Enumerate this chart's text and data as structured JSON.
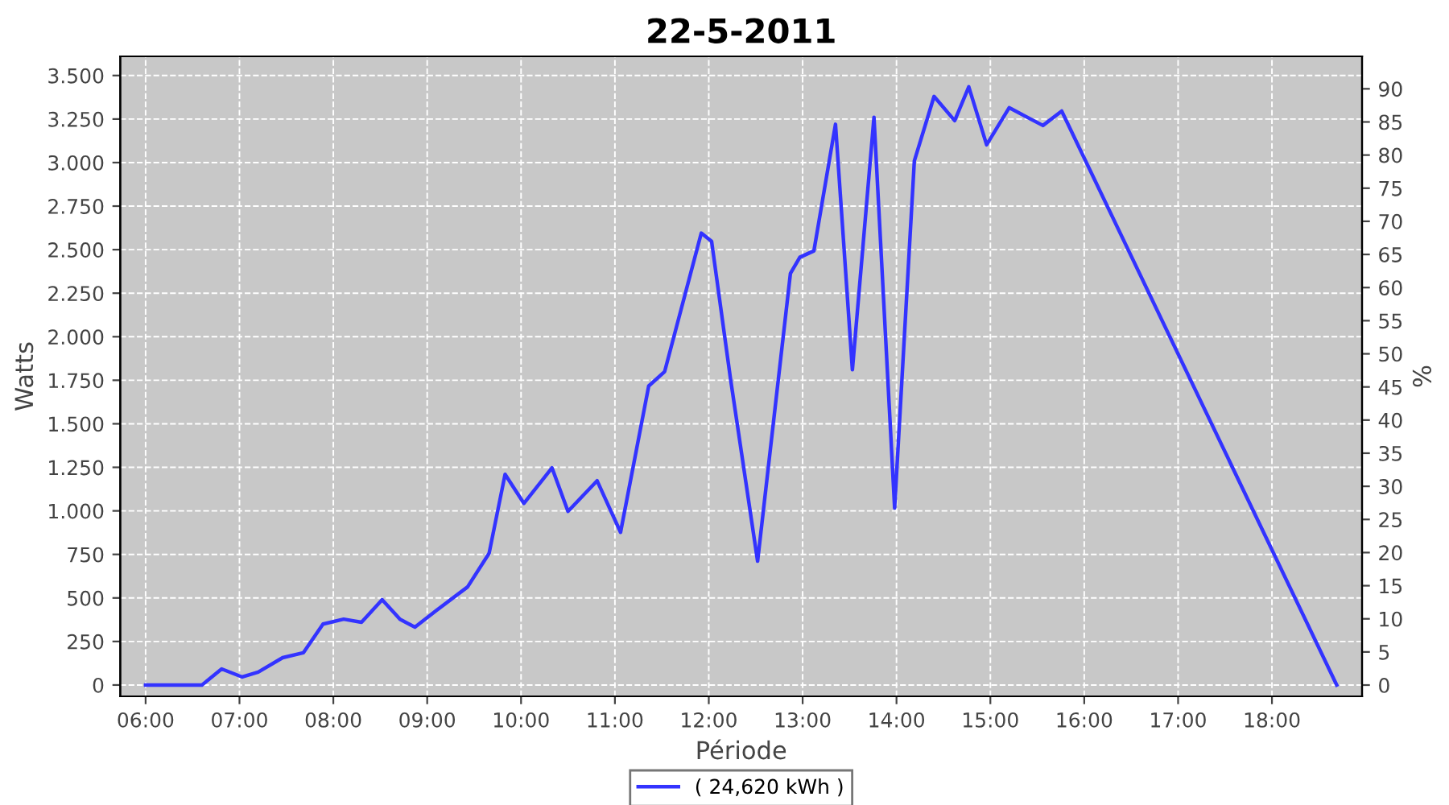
{
  "chart_data": {
    "type": "line",
    "title": "22-5-2011",
    "xlabel": "Période",
    "ylabel": "Watts",
    "y2label": "%",
    "x": [
      6.0,
      6.6,
      6.81,
      7.03,
      7.2,
      7.46,
      7.68,
      7.89,
      8.11,
      8.3,
      8.52,
      8.71,
      8.87,
      9.09,
      9.43,
      9.66,
      9.83,
      10.03,
      10.33,
      10.5,
      10.81,
      11.06,
      11.36,
      11.53,
      11.92,
      12.03,
      12.23,
      12.52,
      12.87,
      12.97,
      13.12,
      13.35,
      13.53,
      13.76,
      13.98,
      14.19,
      14.4,
      14.62,
      14.77,
      14.96,
      15.2,
      15.56,
      15.76,
      18.69
    ],
    "series": [
      {
        "name": "( 24,620 kWh )",
        "color": "#3333ff",
        "values": [
          0,
          0,
          92,
          46,
          74,
          157,
          185,
          350,
          378,
          360,
          490,
          378,
          332,
          425,
          563,
          757,
          1210,
          1043,
          1247,
          997,
          1173,
          877,
          1717,
          1800,
          2595,
          2548,
          1764,
          711,
          2364,
          2456,
          2493,
          3220,
          1810,
          3260,
          1016,
          3010,
          3380,
          3241,
          3435,
          3102,
          3315,
          3213,
          3296,
          0
        ]
      }
    ],
    "xlim": [
      5.73,
      18.96
    ],
    "xticks": [
      {
        "value": 6,
        "label": "06:00"
      },
      {
        "value": 7,
        "label": "07:00"
      },
      {
        "value": 8,
        "label": "08:00"
      },
      {
        "value": 9,
        "label": "09:00"
      },
      {
        "value": 10,
        "label": "10:00"
      },
      {
        "value": 11,
        "label": "11:00"
      },
      {
        "value": 12,
        "label": "12:00"
      },
      {
        "value": 13,
        "label": "13:00"
      },
      {
        "value": 14,
        "label": "14:00"
      },
      {
        "value": 15,
        "label": "15:00"
      },
      {
        "value": 16,
        "label": "16:00"
      },
      {
        "value": 17,
        "label": "17:00"
      },
      {
        "value": 18,
        "label": "18:00"
      }
    ],
    "ylim": [
      -65,
      3610
    ],
    "yticks": [
      0,
      250,
      500,
      750,
      {
        "value": 1000,
        "label": "1.000"
      },
      {
        "value": 1250,
        "label": "1.250"
      },
      {
        "value": 1500,
        "label": "1.500"
      },
      {
        "value": 1750,
        "label": "1.750"
      },
      {
        "value": 2000,
        "label": "2.000"
      },
      {
        "value": 2250,
        "label": "2.250"
      },
      {
        "value": 2500,
        "label": "2.500"
      },
      {
        "value": 2750,
        "label": "2.750"
      },
      {
        "value": 3000,
        "label": "3.000"
      },
      {
        "value": 3250,
        "label": "3.250"
      },
      {
        "value": 3500,
        "label": "3.500"
      }
    ],
    "y2lim": [
      -1.7,
      94.9
    ],
    "y2ticks": [
      0,
      5,
      10,
      15,
      20,
      25,
      30,
      35,
      40,
      45,
      50,
      55,
      60,
      65,
      70,
      75,
      80,
      85,
      90
    ],
    "grid": true,
    "legend": "bottom",
    "marker": "none",
    "line_style": "solid"
  }
}
